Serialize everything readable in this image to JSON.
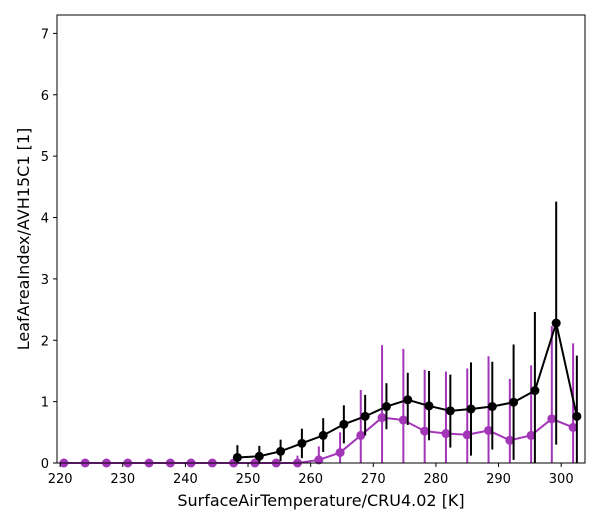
{
  "chart_data": {
    "type": "line",
    "xlabel": "SurfaceAirTemperature/CRU4.02 [K]",
    "ylabel": "LeafAreaIndex/AVH15C1 [1]",
    "xlim": [
      219.5,
      303.8
    ],
    "ylim": [
      0,
      7.3
    ],
    "xticks": [
      220,
      230,
      240,
      250,
      260,
      270,
      280,
      290,
      300
    ],
    "yticks": [
      0,
      1,
      2,
      3,
      4,
      5,
      6,
      7
    ],
    "grid": false,
    "legend": "none",
    "series": [
      {
        "color": "#000000",
        "marker": "circle",
        "error_color": "#000000",
        "x": [
          248.3,
          251.8,
          255.2,
          258.6,
          262.0,
          265.3,
          268.7,
          272.1,
          275.5,
          278.9,
          282.3,
          285.6,
          289.0,
          292.4,
          295.8,
          299.2,
          302.5
        ],
        "y": [
          0.09,
          0.11,
          0.19,
          0.32,
          0.45,
          0.63,
          0.76,
          0.92,
          1.03,
          0.93,
          0.85,
          0.88,
          0.92,
          0.99,
          1.18,
          2.28,
          0.76
        ],
        "err_low": [
          0.0,
          0.0,
          0.03,
          0.08,
          0.18,
          0.32,
          0.45,
          0.55,
          0.62,
          0.37,
          0.25,
          0.12,
          0.22,
          0.05,
          0.0,
          0.3,
          0.0
        ],
        "err_high": [
          0.29,
          0.28,
          0.38,
          0.56,
          0.73,
          0.94,
          1.11,
          1.3,
          1.47,
          1.5,
          1.44,
          1.64,
          1.65,
          1.93,
          2.46,
          4.26,
          1.75
        ]
      },
      {
        "color": "#a335b8",
        "marker": "circle",
        "error_color": "#a335b8",
        "x": [
          220.6,
          224.0,
          227.4,
          230.8,
          234.2,
          237.6,
          240.9,
          244.3,
          247.7,
          251.1,
          254.5,
          257.9,
          261.3,
          264.7,
          268.0,
          271.4,
          274.8,
          278.2,
          281.6,
          285.0,
          288.4,
          291.8,
          295.2,
          298.5,
          301.9
        ],
        "y": [
          0.0,
          0.0,
          0.0,
          0.0,
          0.0,
          0.0,
          0.0,
          0.0,
          0.0,
          0.0,
          0.0,
          0.0,
          0.05,
          0.17,
          0.45,
          0.74,
          0.7,
          0.52,
          0.48,
          0.46,
          0.53,
          0.37,
          0.45,
          0.72,
          0.58
        ],
        "err_low": [
          0.0,
          0.0,
          0.0,
          0.0,
          0.0,
          0.0,
          0.0,
          0.0,
          0.0,
          0.0,
          0.0,
          0.0,
          0.0,
          0.0,
          0.0,
          0.0,
          0.0,
          0.0,
          0.0,
          0.0,
          0.0,
          0.0,
          0.0,
          0.0,
          0.0
        ],
        "err_high": [
          0.0,
          0.0,
          0.0,
          0.0,
          0.0,
          0.0,
          0.0,
          0.0,
          0.0,
          0.02,
          0.05,
          0.12,
          0.27,
          0.5,
          1.19,
          1.92,
          1.86,
          1.52,
          1.49,
          1.54,
          1.74,
          1.37,
          1.59,
          2.23,
          1.95
        ]
      }
    ]
  }
}
